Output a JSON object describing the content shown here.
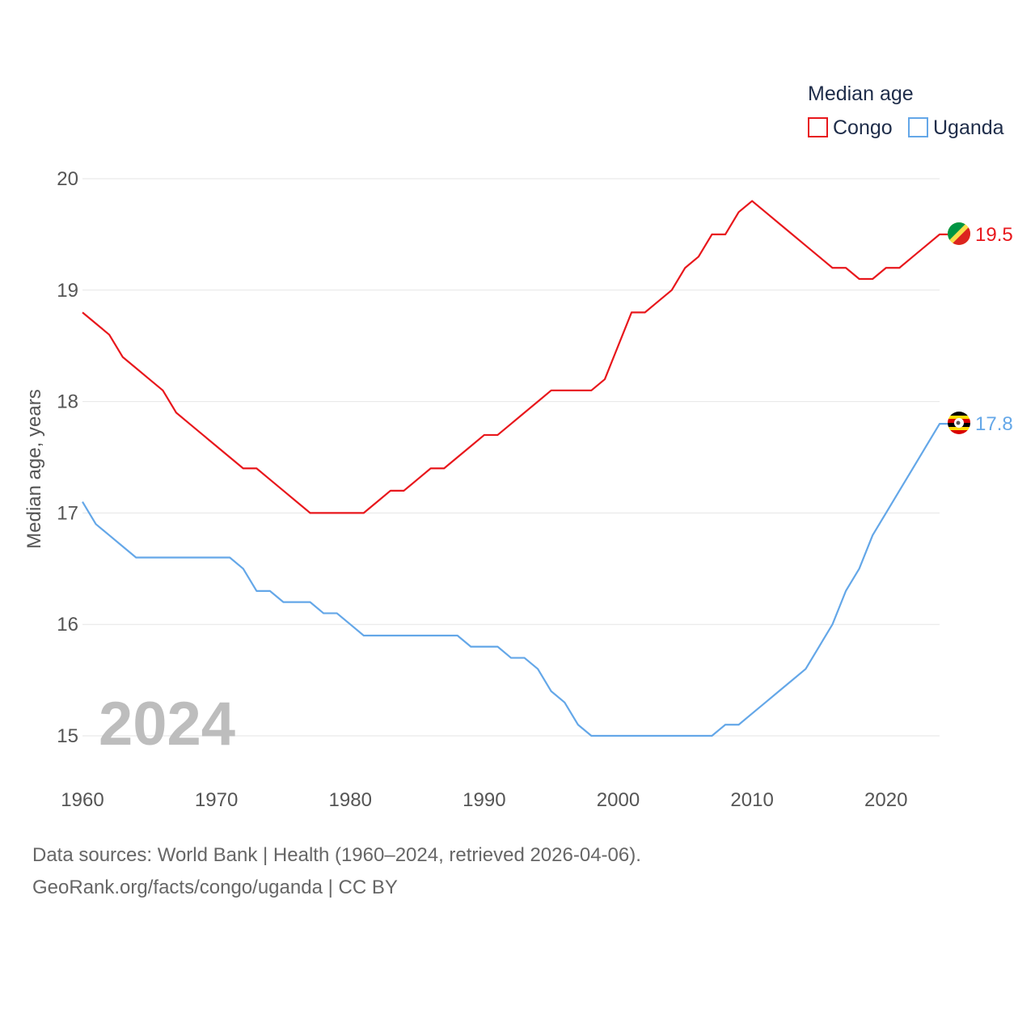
{
  "chart_data": {
    "type": "line",
    "ylabel": "Median age, years",
    "xlabel": "",
    "xlim": [
      1960,
      2024
    ],
    "ylim": [
      15,
      20
    ],
    "x_ticks": [
      1960,
      1970,
      1980,
      1990,
      2000,
      2010,
      2020
    ],
    "y_ticks": [
      15,
      16,
      17,
      18,
      19,
      20
    ],
    "grid": true,
    "legend_title": "Median age",
    "legend_position": "top-right",
    "year_label": "2024",
    "x": [
      1960,
      1961,
      1962,
      1963,
      1964,
      1965,
      1966,
      1967,
      1968,
      1969,
      1970,
      1971,
      1972,
      1973,
      1974,
      1975,
      1976,
      1977,
      1978,
      1979,
      1980,
      1981,
      1982,
      1983,
      1984,
      1985,
      1986,
      1987,
      1988,
      1989,
      1990,
      1991,
      1992,
      1993,
      1994,
      1995,
      1996,
      1997,
      1998,
      1999,
      2000,
      2001,
      2002,
      2003,
      2004,
      2005,
      2006,
      2007,
      2008,
      2009,
      2010,
      2011,
      2012,
      2013,
      2014,
      2015,
      2016,
      2017,
      2018,
      2019,
      2020,
      2021,
      2022,
      2023,
      2024
    ],
    "series": [
      {
        "name": "Congo",
        "color": "#e8171c",
        "end_label": "19.5",
        "flag": "congo-flag",
        "values": [
          18.8,
          18.7,
          18.6,
          18.4,
          18.3,
          18.2,
          18.1,
          17.9,
          17.8,
          17.7,
          17.6,
          17.5,
          17.4,
          17.4,
          17.3,
          17.2,
          17.1,
          17.0,
          17.0,
          17.0,
          17.0,
          17.0,
          17.1,
          17.2,
          17.2,
          17.3,
          17.4,
          17.4,
          17.5,
          17.6,
          17.7,
          17.7,
          17.8,
          17.9,
          18.0,
          18.1,
          18.1,
          18.1,
          18.1,
          18.2,
          18.5,
          18.8,
          18.8,
          18.9,
          19.0,
          19.2,
          19.3,
          19.5,
          19.5,
          19.7,
          19.8,
          19.7,
          19.6,
          19.5,
          19.4,
          19.3,
          19.2,
          19.2,
          19.1,
          19.1,
          19.2,
          19.2,
          19.3,
          19.4,
          19.5
        ]
      },
      {
        "name": "Uganda",
        "color": "#64a7e8",
        "end_label": "17.8",
        "flag": "uganda-flag",
        "values": [
          17.1,
          16.9,
          16.8,
          16.7,
          16.6,
          16.6,
          16.6,
          16.6,
          16.6,
          16.6,
          16.6,
          16.6,
          16.5,
          16.3,
          16.3,
          16.2,
          16.2,
          16.2,
          16.1,
          16.1,
          16.0,
          15.9,
          15.9,
          15.9,
          15.9,
          15.9,
          15.9,
          15.9,
          15.9,
          15.8,
          15.8,
          15.8,
          15.7,
          15.7,
          15.6,
          15.4,
          15.3,
          15.1,
          15.0,
          15.0,
          15.0,
          15.0,
          15.0,
          15.0,
          15.0,
          15.0,
          15.0,
          15.0,
          15.1,
          15.1,
          15.2,
          15.3,
          15.4,
          15.5,
          15.6,
          15.8,
          16.0,
          16.3,
          16.5,
          16.8,
          17.0,
          17.2,
          17.4,
          17.6,
          17.8
        ]
      }
    ]
  },
  "footer": {
    "line1": "Data sources: World Bank | Health (1960–2024, retrieved 2026-04-06).",
    "line2": "GeoRank.org/facts/congo/uganda | CC BY"
  }
}
